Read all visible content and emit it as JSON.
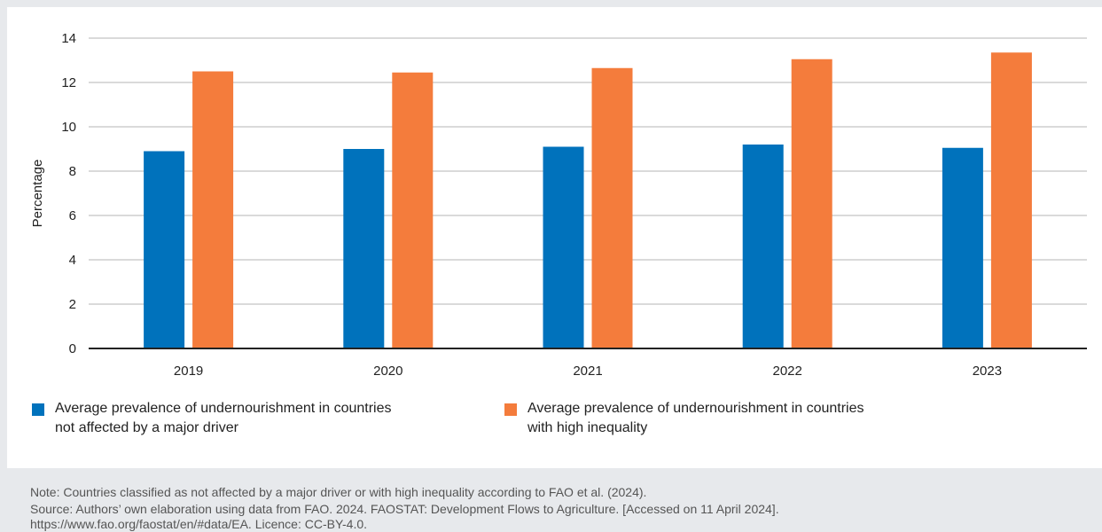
{
  "chart_data": {
    "type": "bar",
    "ylabel": "Percentage",
    "ylim": [
      0,
      14
    ],
    "yticks": [
      "0",
      "2",
      "4",
      "6",
      "8",
      "10",
      "12",
      "14"
    ],
    "categories": [
      "2019",
      "2020",
      "2021",
      "2022",
      "2023"
    ],
    "grid": true,
    "legend_position": "bottom",
    "series": [
      {
        "name": "Average prevalence of undernourishment in countries not affected by a major driver",
        "name_line1": "Average prevalence of undernourishment in countries",
        "name_line2": "not affected by a major driver",
        "color": "#0072bc",
        "values": [
          8.9,
          9.0,
          9.1,
          9.2,
          9.05
        ]
      },
      {
        "name": "Average prevalence of undernourishment in countries with high inequality",
        "name_line1": "Average prevalence of undernourishment in countries",
        "name_line2": "with high inequality",
        "color": "#f47c3c",
        "values": [
          12.5,
          12.45,
          12.65,
          13.05,
          13.35
        ]
      }
    ]
  },
  "note": "Note: Countries classified as not affected by a major driver or with high inequality according to FAO et al. (2024).",
  "source_line1": "Source: Authors’ own elaboration using data from FAO. 2024. FAOSTAT: Development Flows to Agriculture. [Accessed on 11 April 2024].",
  "source_line2": "https://www.fao.org/faostat/en/#data/EA. Licence: CC-BY-4.0."
}
